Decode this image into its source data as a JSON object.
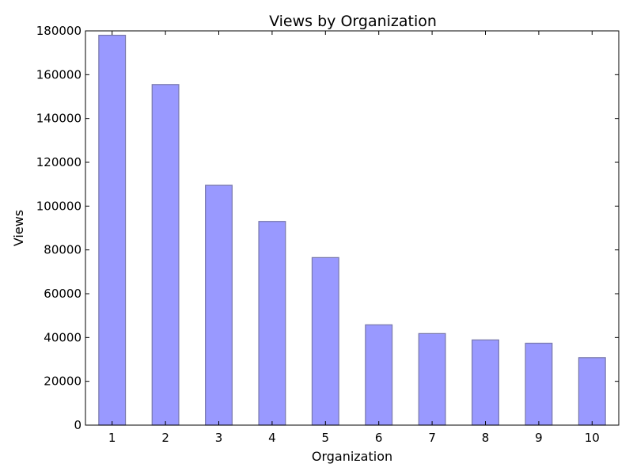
{
  "chart_data": {
    "type": "bar",
    "title": "Views by Organization",
    "xlabel": "Organization",
    "ylabel": "Views",
    "categories": [
      "1",
      "2",
      "3",
      "4",
      "5",
      "6",
      "7",
      "8",
      "9",
      "10"
    ],
    "values": [
      178000,
      155500,
      109500,
      93000,
      76500,
      45800,
      41800,
      38900,
      37400,
      30800
    ],
    "ylim": [
      0,
      180000
    ],
    "yticks": [
      0,
      20000,
      40000,
      60000,
      80000,
      100000,
      120000,
      140000,
      160000,
      180000
    ],
    "grid": false,
    "bar_color": "#9999ff",
    "bar_edge_color": "#7777aa"
  }
}
